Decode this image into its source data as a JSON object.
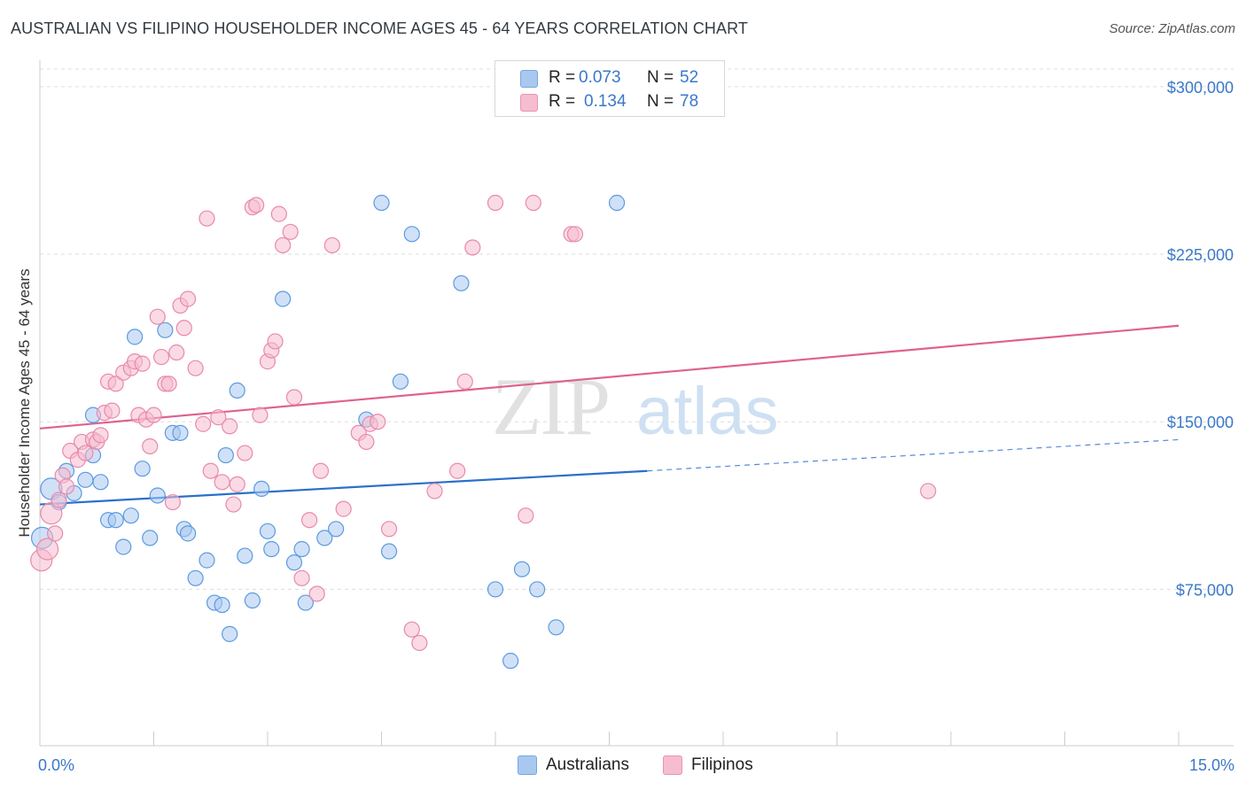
{
  "title": "AUSTRALIAN VS FILIPINO HOUSEHOLDER INCOME AGES 45 - 64 YEARS CORRELATION CHART",
  "source": "Source: ZipAtlas.com",
  "watermark": "ZIPatlas",
  "stats": [
    {
      "r_label": "R =",
      "r_value": "0.073",
      "n_label": "N =",
      "n_value": "52",
      "color": "#a9c8f0",
      "border": "#7aa6df"
    },
    {
      "r_label": "R =",
      "r_value": "0.134",
      "n_label": "N =",
      "n_value": "78",
      "color": "#f6bcd0",
      "border": "#e994b2"
    }
  ],
  "legend": [
    {
      "label": "Australians",
      "color": "#a9c8f0",
      "border": "#7aa6df"
    },
    {
      "label": "Filipinos",
      "color": "#f6bcd0",
      "border": "#e994b2"
    }
  ],
  "chart_data": {
    "type": "scatter",
    "title": "AUSTRALIAN VS FILIPINO HOUSEHOLDER INCOME AGES 45 - 64 YEARS CORRELATION CHART",
    "xlabel": "",
    "ylabel": "Householder Income Ages 45 - 64 years",
    "xlim": [
      0,
      15
    ],
    "ylim": [
      5000,
      315000
    ],
    "x_tick_labels": [
      "0.0%",
      "15.0%"
    ],
    "y_ticks": [
      75000,
      150000,
      225000,
      300000
    ],
    "y_tick_labels": [
      "$75,000",
      "$150,000",
      "$225,000",
      "$300,000"
    ],
    "grid": true,
    "legend_position": "bottom-center",
    "series": [
      {
        "name": "Australians",
        "color": "#5b9be0",
        "fill": "#a9c8f0",
        "trend": {
          "x": [
            0,
            8.0
          ],
          "y": [
            113000,
            128000
          ],
          "dashed_to": [
            15,
            142000
          ],
          "color": "#2a6fcc"
        },
        "points": [
          [
            0.03,
            98000
          ],
          [
            0.15,
            120000
          ],
          [
            0.25,
            114000
          ],
          [
            0.35,
            128000
          ],
          [
            0.45,
            118000
          ],
          [
            0.6,
            124000
          ],
          [
            0.7,
            153000
          ],
          [
            0.8,
            123000
          ],
          [
            0.9,
            106000
          ],
          [
            1.0,
            106000
          ],
          [
            1.1,
            94000
          ],
          [
            1.2,
            108000
          ],
          [
            1.25,
            188000
          ],
          [
            1.35,
            129000
          ],
          [
            1.45,
            98000
          ],
          [
            1.55,
            117000
          ],
          [
            1.65,
            191000
          ],
          [
            1.75,
            145000
          ],
          [
            1.85,
            145000
          ],
          [
            1.9,
            102000
          ],
          [
            1.95,
            100000
          ],
          [
            2.05,
            80000
          ],
          [
            2.2,
            88000
          ],
          [
            2.3,
            69000
          ],
          [
            2.4,
            68000
          ],
          [
            2.45,
            135000
          ],
          [
            2.5,
            55000
          ],
          [
            2.6,
            164000
          ],
          [
            2.7,
            90000
          ],
          [
            2.8,
            70000
          ],
          [
            2.92,
            120000
          ],
          [
            3.0,
            101000
          ],
          [
            3.05,
            93000
          ],
          [
            3.2,
            205000
          ],
          [
            3.35,
            87000
          ],
          [
            3.45,
            93000
          ],
          [
            3.5,
            69000
          ],
          [
            3.75,
            98000
          ],
          [
            3.9,
            102000
          ],
          [
            4.3,
            151000
          ],
          [
            4.5,
            248000
          ],
          [
            4.6,
            92000
          ],
          [
            4.75,
            168000
          ],
          [
            4.9,
            234000
          ],
          [
            5.55,
            212000
          ],
          [
            6.0,
            75000
          ],
          [
            6.2,
            43000
          ],
          [
            6.35,
            84000
          ],
          [
            6.55,
            75000
          ],
          [
            6.8,
            58000
          ],
          [
            7.6,
            248000
          ],
          [
            0.7,
            135000
          ]
        ]
      },
      {
        "name": "Filipinos",
        "color": "#e88aaa",
        "fill": "#f6bcd0",
        "trend": {
          "x": [
            0,
            15
          ],
          "y": [
            147000,
            193000
          ],
          "color": "#e0608f"
        },
        "points": [
          [
            0.02,
            88000
          ],
          [
            0.1,
            93000
          ],
          [
            0.15,
            109000
          ],
          [
            0.2,
            100000
          ],
          [
            0.3,
            126000
          ],
          [
            0.35,
            121000
          ],
          [
            0.4,
            137000
          ],
          [
            0.5,
            133000
          ],
          [
            0.55,
            141000
          ],
          [
            0.6,
            136000
          ],
          [
            0.7,
            142000
          ],
          [
            0.75,
            141000
          ],
          [
            0.8,
            144000
          ],
          [
            0.85,
            154000
          ],
          [
            0.9,
            168000
          ],
          [
            0.95,
            155000
          ],
          [
            1.0,
            167000
          ],
          [
            1.1,
            172000
          ],
          [
            1.2,
            174000
          ],
          [
            1.25,
            177000
          ],
          [
            1.3,
            153000
          ],
          [
            1.35,
            176000
          ],
          [
            1.4,
            151000
          ],
          [
            1.45,
            139000
          ],
          [
            1.5,
            153000
          ],
          [
            1.55,
            197000
          ],
          [
            1.6,
            179000
          ],
          [
            1.65,
            167000
          ],
          [
            1.7,
            167000
          ],
          [
            1.75,
            114000
          ],
          [
            1.8,
            181000
          ],
          [
            1.85,
            202000
          ],
          [
            1.9,
            192000
          ],
          [
            1.95,
            205000
          ],
          [
            2.05,
            174000
          ],
          [
            2.15,
            149000
          ],
          [
            2.2,
            241000
          ],
          [
            2.25,
            128000
          ],
          [
            2.35,
            152000
          ],
          [
            2.4,
            123000
          ],
          [
            2.5,
            148000
          ],
          [
            2.55,
            113000
          ],
          [
            2.6,
            122000
          ],
          [
            2.7,
            136000
          ],
          [
            2.8,
            246000
          ],
          [
            2.85,
            247000
          ],
          [
            2.9,
            153000
          ],
          [
            3.0,
            177000
          ],
          [
            3.05,
            182000
          ],
          [
            3.1,
            186000
          ],
          [
            3.15,
            243000
          ],
          [
            3.2,
            229000
          ],
          [
            3.3,
            235000
          ],
          [
            3.35,
            161000
          ],
          [
            3.45,
            80000
          ],
          [
            3.55,
            106000
          ],
          [
            3.65,
            73000
          ],
          [
            3.7,
            128000
          ],
          [
            3.85,
            229000
          ],
          [
            4.0,
            111000
          ],
          [
            4.2,
            145000
          ],
          [
            4.3,
            141000
          ],
          [
            4.35,
            149000
          ],
          [
            4.45,
            150000
          ],
          [
            4.6,
            102000
          ],
          [
            4.9,
            57000
          ],
          [
            5.0,
            51000
          ],
          [
            5.2,
            119000
          ],
          [
            5.5,
            128000
          ],
          [
            5.6,
            168000
          ],
          [
            5.7,
            228000
          ],
          [
            6.0,
            248000
          ],
          [
            6.4,
            108000
          ],
          [
            6.5,
            248000
          ],
          [
            7.0,
            234000
          ],
          [
            7.05,
            234000
          ],
          [
            11.7,
            119000
          ],
          [
            0.25,
            115000
          ]
        ]
      }
    ]
  }
}
